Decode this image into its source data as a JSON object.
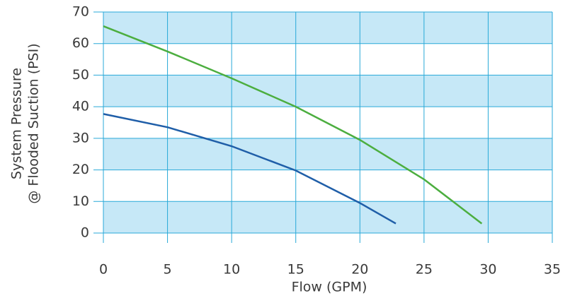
{
  "chart_data": {
    "type": "line",
    "xlabel": "Flow (GPM)",
    "ylabel": [
      "System Pressure",
      "@ Flooded Suction (PSI)"
    ],
    "xlim": [
      0,
      35
    ],
    "xticks": [
      0,
      5,
      10,
      15,
      20,
      25,
      30,
      35
    ],
    "ylim": [
      0,
      70
    ],
    "yticks": [
      0,
      10,
      20,
      30,
      40,
      50,
      60,
      70
    ],
    "grid": true,
    "grid_color": "#29a9d8",
    "band_color": "#c6e8f7",
    "series": [
      {
        "color": "#1f5ea8",
        "x": [
          0,
          5,
          10,
          15,
          20,
          22.8
        ],
        "values": [
          37.7,
          33.5,
          27.5,
          19.8,
          9.5,
          3
        ]
      },
      {
        "color": "#4cae3f",
        "x": [
          0,
          5,
          10,
          15,
          20,
          25,
          29.5
        ],
        "values": [
          65.5,
          57.5,
          49,
          40,
          29.5,
          17,
          3
        ]
      }
    ]
  }
}
